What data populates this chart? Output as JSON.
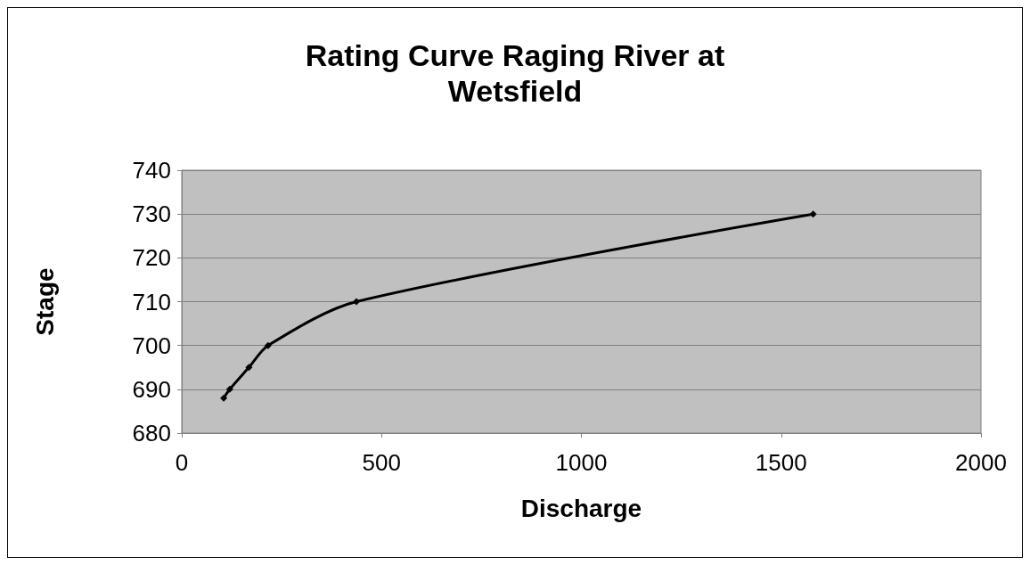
{
  "chart_data": {
    "type": "line",
    "title": "Rating Curve Raging River at\nWetsfield",
    "xlabel": "Discharge",
    "ylabel": "Stage",
    "x": [
      105,
      120,
      168,
      216,
      437,
      1580
    ],
    "series": [
      {
        "color": "#000000",
        "values": [
          688,
          690,
          695,
          700,
          710,
          730
        ]
      }
    ],
    "xlim": [
      0,
      2000
    ],
    "xticks": [
      0,
      500,
      1000,
      1500,
      2000
    ],
    "ylim": [
      680,
      740
    ],
    "yticks": [
      680,
      690,
      700,
      710,
      720,
      730,
      740
    ],
    "grid": "y",
    "marker": "diamond",
    "line_style": "solid"
  }
}
